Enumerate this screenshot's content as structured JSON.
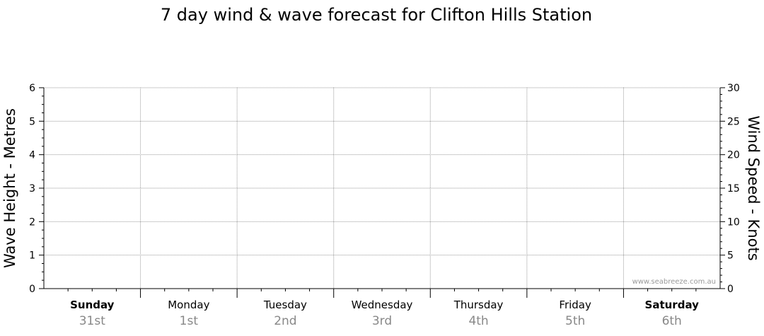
{
  "chart_data": {
    "type": "line",
    "title": "7 day wind & wave forecast for Clifton Hills Station",
    "ylabel_left": "Wave Height - Metres",
    "ylabel_right": "Wind Speed - Knots",
    "ylim_left": [
      0,
      6
    ],
    "ylim_right": [
      0,
      30
    ],
    "yticks_left": [
      "0",
      "1",
      "2",
      "3",
      "4",
      "5",
      "6"
    ],
    "yticks_right": [
      "0",
      "5",
      "10",
      "15",
      "20",
      "25",
      "30"
    ],
    "grid": true,
    "days": [
      {
        "name": "Sunday",
        "date": "31st",
        "bold": true
      },
      {
        "name": "Monday",
        "date": "1st",
        "bold": false
      },
      {
        "name": "Tuesday",
        "date": "2nd",
        "bold": false
      },
      {
        "name": "Wednesday",
        "date": "3rd",
        "bold": false
      },
      {
        "name": "Thursday",
        "date": "4th",
        "bold": false
      },
      {
        "name": "Friday",
        "date": "5th",
        "bold": false
      },
      {
        "name": "Saturday",
        "date": "6th",
        "bold": true
      }
    ],
    "series": [],
    "watermark": "www.seabreeze.com.au"
  },
  "colors": {
    "axis": "#000000",
    "grid": "#999999",
    "date_text": "#888888",
    "watermark": "#9a9a9a"
  }
}
